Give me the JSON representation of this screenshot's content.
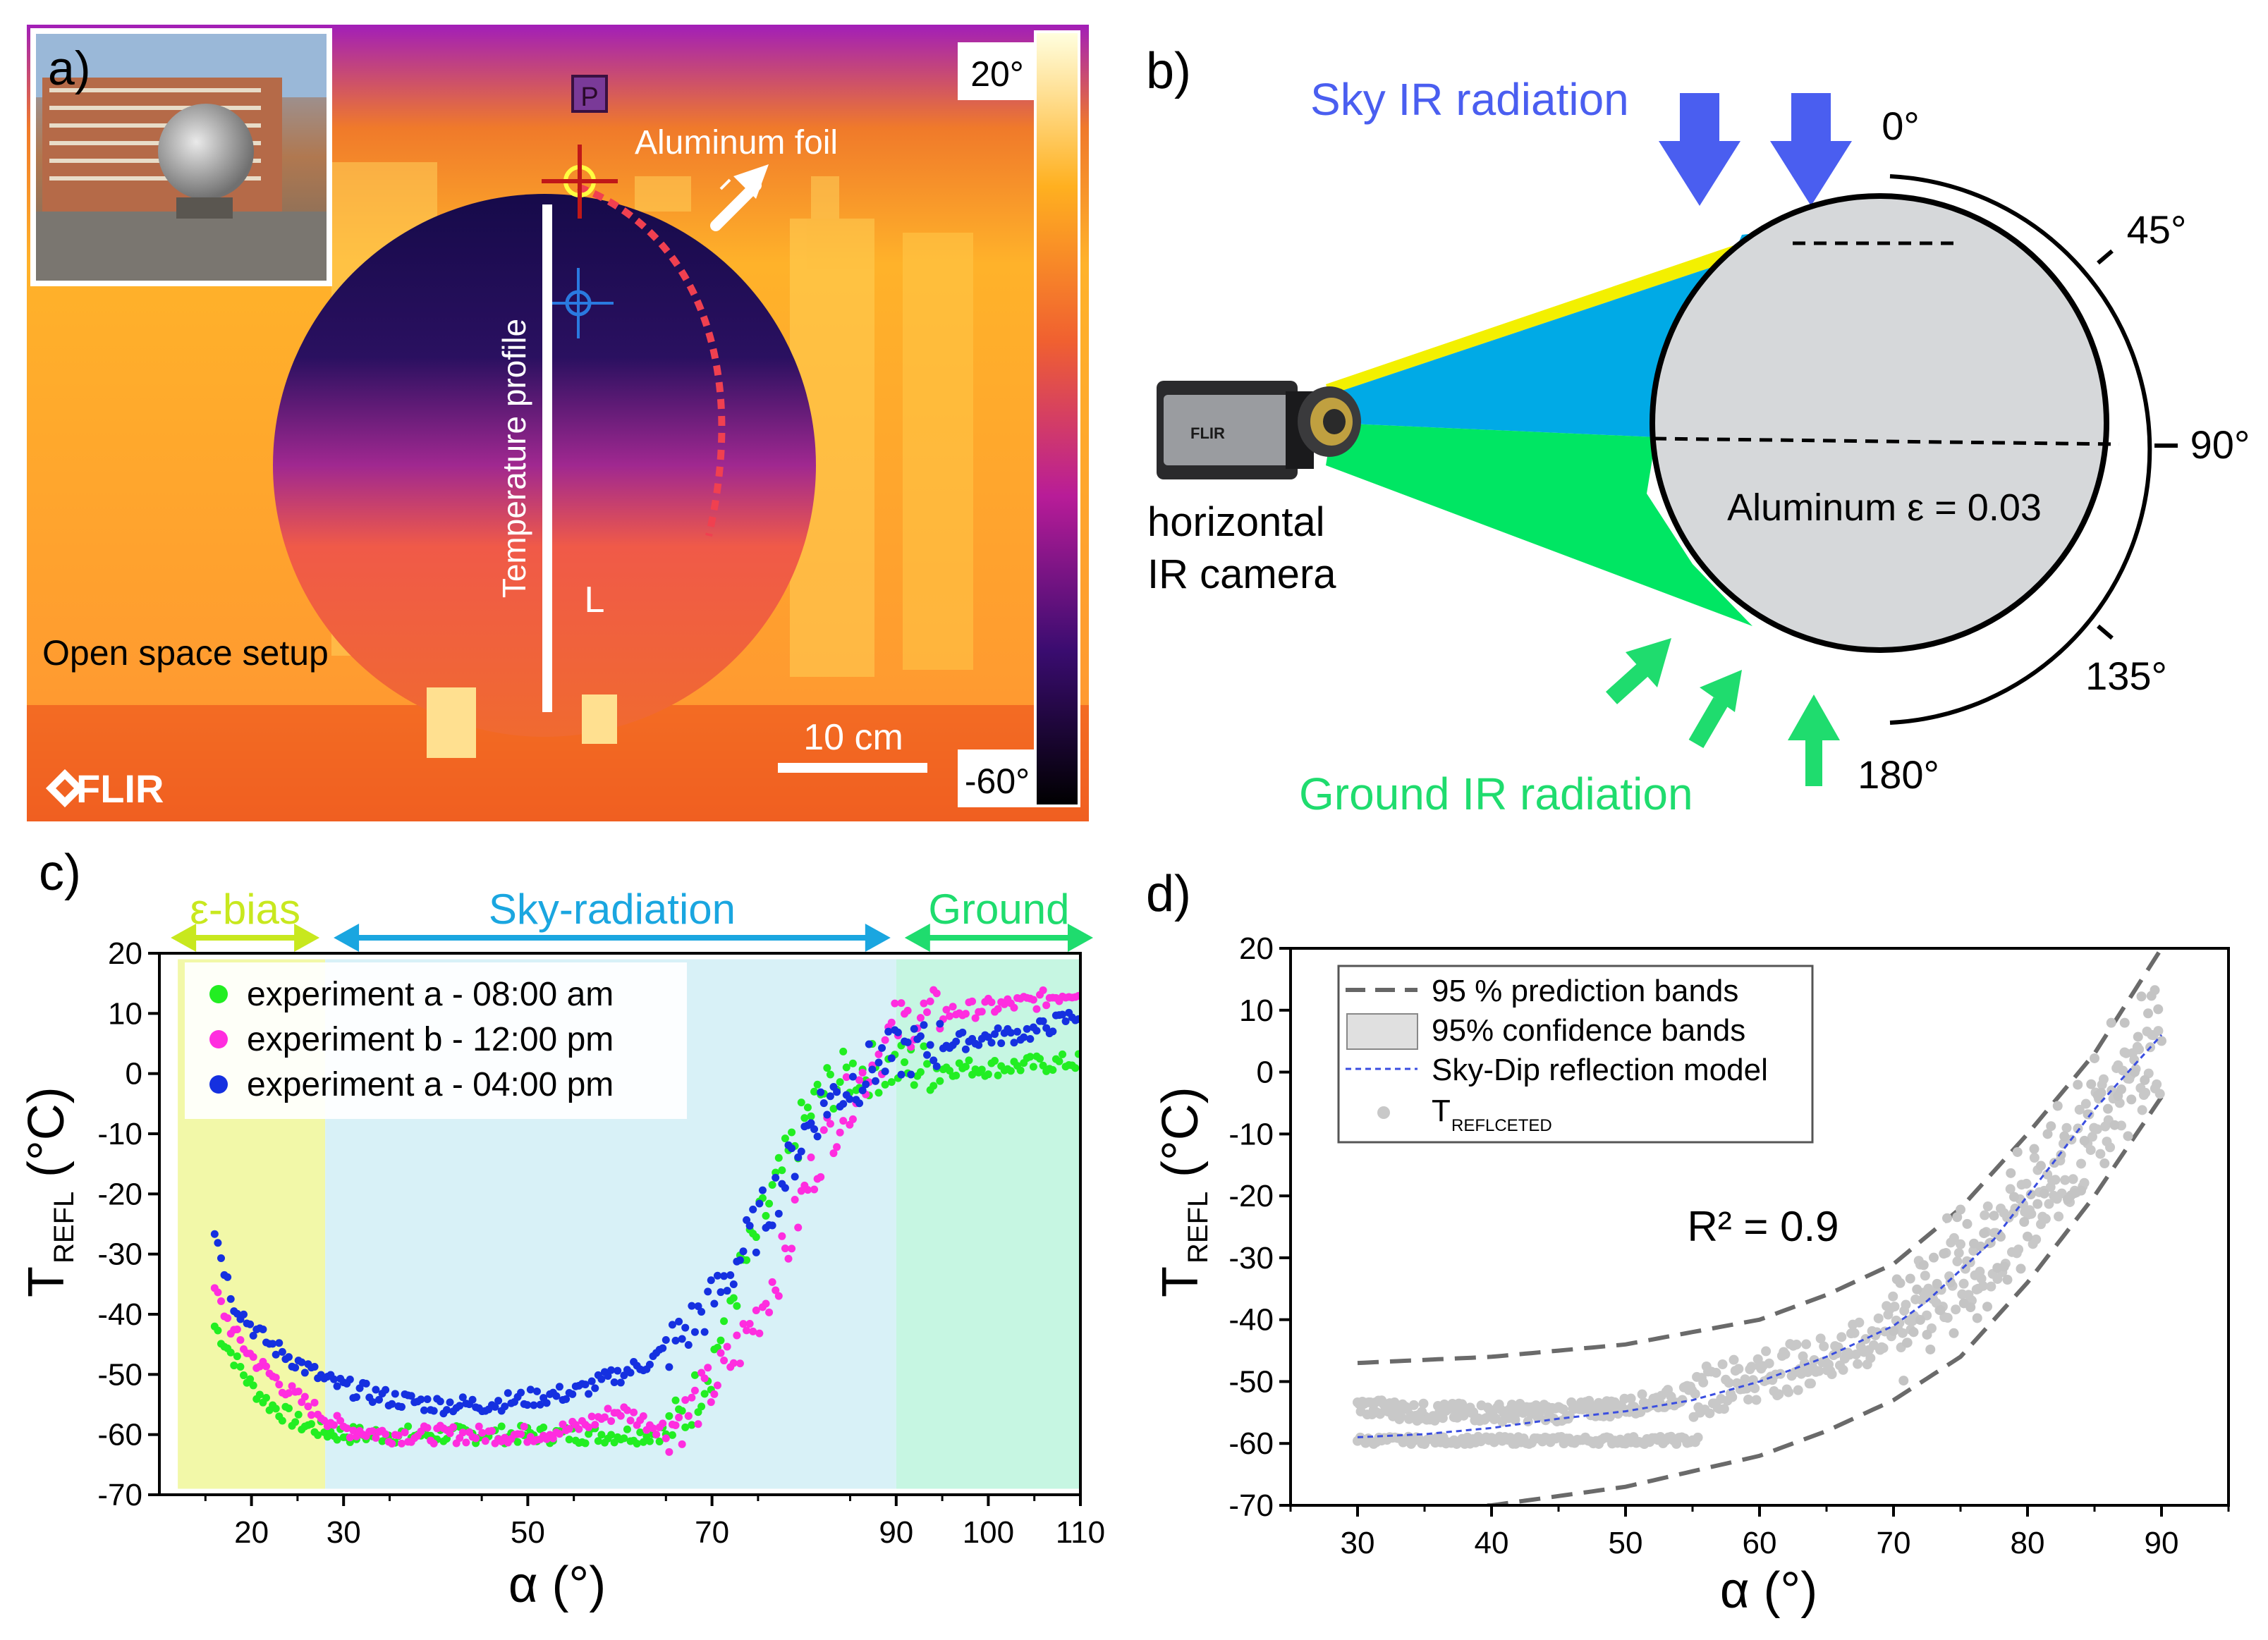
{
  "colors": {
    "sky_blue": "#4a5ef0",
    "ground_green": "#1fdc6e",
    "eps_yellow": "#c8e81e",
    "skyrad_blue": "#1aa6e0",
    "green_pts": "#22ee22",
    "magenta_pts": "#ff2ddf",
    "blue_pts": "#1530e0",
    "panel_a_bg": "#f07818",
    "model_line": "#3a4ee0"
  },
  "panel_a": {
    "label": "a)",
    "scale_max": "20°",
    "scale_min": "-60°",
    "foil_label": "Aluminum foil",
    "profile_label": "Temperature profile",
    "setup_label": "Open space setup",
    "scalebar_label": "10 cm",
    "brand": "FLIR",
    "marker_p": "P",
    "marker_l": "L"
  },
  "panel_b": {
    "label": "b)",
    "sky_label": "Sky IR radiation",
    "ground_label": "Ground IR radiation",
    "camera_label_1": "horizontal",
    "camera_label_2": "IR camera",
    "material_label": "Aluminum ε = 0.03",
    "angles": [
      "0°",
      "45°",
      "90°",
      "135°",
      "180°"
    ],
    "camera_brand": "FLIR"
  },
  "chart_data": [
    {
      "panel": "c)",
      "type": "scatter",
      "xlabel": "α (°)",
      "ylabel_main": "T",
      "ylabel_sub": "REFL",
      "ylabel_unit": "(°C)",
      "xlim": [
        10,
        110
      ],
      "ylim": [
        -70,
        20
      ],
      "x_ticks": [
        20,
        30,
        50,
        70,
        90,
        100,
        110
      ],
      "y_ticks": [
        20,
        10,
        0,
        -10,
        -20,
        -30,
        -40,
        -50,
        -60,
        -70
      ],
      "regions": [
        {
          "name": "ε-bias",
          "x_range": [
            12,
            28
          ],
          "color": "#f2f8a8"
        },
        {
          "name": "Sky-radiation",
          "x_range": [
            28,
            90
          ],
          "color": "#d8f1f7"
        },
        {
          "name": "Ground",
          "x_range": [
            90,
            110
          ],
          "color": "#c6f6e2"
        }
      ],
      "series": [
        {
          "name": "experiment a - 08:00 am",
          "color": "#22ee22",
          "x": [
            16,
            18,
            20,
            22,
            25,
            28,
            30,
            35,
            40,
            45,
            50,
            55,
            60,
            63,
            65,
            67,
            70,
            72,
            75,
            78,
            80,
            82,
            85,
            88,
            90,
            92,
            95,
            100,
            105,
            110
          ],
          "y": [
            -42,
            -47,
            -52,
            -55,
            -58,
            -59.5,
            -60,
            -60,
            -60,
            -60,
            -60,
            -60,
            -60,
            -60,
            -59.5,
            -57,
            -48,
            -38,
            -26,
            -15,
            -8,
            -3,
            0,
            1,
            1,
            1,
            1,
            1,
            1.5,
            2
          ]
        },
        {
          "name": "experiment b - 12:00 pm",
          "color": "#ff2ddf",
          "x": [
            16,
            18,
            20,
            22,
            25,
            28,
            30,
            35,
            40,
            45,
            50,
            55,
            60,
            63,
            65,
            67,
            70,
            72,
            75,
            78,
            80,
            82,
            85,
            88,
            90,
            92,
            95,
            100,
            105,
            110
          ],
          "y": [
            -36,
            -43,
            -47,
            -50,
            -54,
            -57,
            -59,
            -60,
            -60,
            -60,
            -60,
            -59,
            -56,
            -58,
            -59,
            -57,
            -52,
            -48,
            -40,
            -30,
            -20,
            -12,
            -4,
            3,
            8,
            9,
            10,
            11,
            12,
            14
          ]
        },
        {
          "name": "experiment a - 04:00 pm",
          "color": "#1530e0",
          "x": [
            16,
            18,
            20,
            22,
            25,
            28,
            30,
            35,
            40,
            45,
            50,
            55,
            60,
            63,
            65,
            67,
            70,
            72,
            75,
            78,
            80,
            82,
            85,
            88,
            90,
            92,
            95,
            100,
            105,
            110
          ],
          "y": [
            -26,
            -38,
            -42,
            -45,
            -48,
            -51,
            -52,
            -54,
            -55,
            -55,
            -54,
            -53,
            -50,
            -48,
            -46,
            -43,
            -38,
            -33,
            -25,
            -17,
            -10,
            -5,
            -2,
            2,
            3,
            4,
            5,
            6,
            7,
            10
          ]
        }
      ],
      "legend_location": "top-left"
    },
    {
      "panel": "d)",
      "type": "scatter",
      "xlabel": "α (°)",
      "ylabel_main": "T",
      "ylabel_sub": "REFL",
      "ylabel_unit": "(°C)",
      "xlim": [
        25,
        95
      ],
      "ylim": [
        -70,
        20
      ],
      "x_ticks": [
        30,
        40,
        50,
        60,
        70,
        80,
        90
      ],
      "y_ticks": [
        20,
        10,
        0,
        -10,
        -20,
        -30,
        -40,
        -50,
        -60,
        -70
      ],
      "annotation": "R² = 0.9",
      "legend_entries": [
        "95 % prediction bands",
        "95% confidence bands",
        "Sky-Dip reflection model",
        "T"
      ],
      "legend_last_sub": "REFLCETED",
      "model": {
        "x": [
          30,
          35,
          40,
          45,
          50,
          55,
          60,
          65,
          70,
          72.5,
          75,
          77.5,
          80,
          82.5,
          85,
          87.5,
          90
        ],
        "y": [
          -59,
          -58.5,
          -57.5,
          -56,
          -54.8,
          -53,
          -50,
          -46,
          -41,
          -37,
          -32,
          -27,
          -20,
          -13,
          -6,
          0,
          6
        ]
      },
      "prediction_upper": {
        "x": [
          30,
          40,
          50,
          60,
          65,
          70,
          75,
          80,
          85,
          90
        ],
        "y": [
          -47,
          -46,
          -44,
          -40,
          -36,
          -31,
          -22,
          -10,
          3,
          20
        ]
      },
      "prediction_lower": {
        "x": [
          30,
          40,
          50,
          60,
          65,
          70,
          75,
          80,
          85,
          90
        ],
        "y": [
          -71,
          -70,
          -67,
          -62,
          -58,
          -53,
          -46,
          -34,
          -20,
          -4
        ]
      },
      "scatter_clusters": [
        {
          "x": [
            30,
            35,
            40,
            45,
            50,
            55
          ],
          "y": [
            -59.5,
            -59.5,
            -59.5,
            -59.5,
            -59.5,
            -59.5
          ]
        },
        {
          "x": [
            30,
            35,
            40,
            45,
            50,
            55,
            58,
            62,
            65,
            68,
            70,
            75,
            80,
            85,
            88,
            90
          ],
          "y": [
            -54,
            -55,
            -55,
            -55,
            -54,
            -52,
            -50,
            -48,
            -46,
            -44,
            -40,
            -33,
            -22,
            -10,
            0,
            3
          ]
        }
      ],
      "legend_location": "top-left"
    }
  ]
}
